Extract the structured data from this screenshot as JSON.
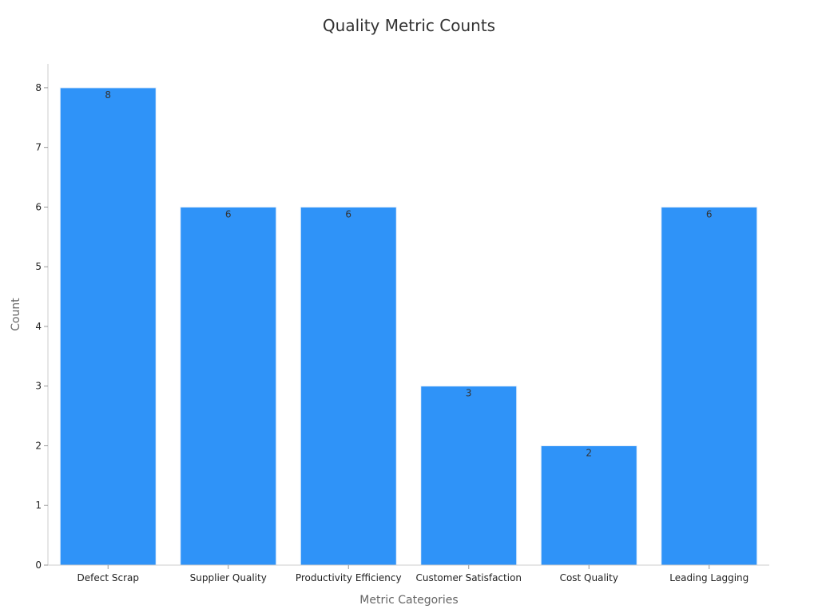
{
  "chart_data": {
    "type": "bar",
    "title": "Quality Metric Counts",
    "xlabel": "Metric Categories",
    "ylabel": "Count",
    "categories": [
      "Defect Scrap",
      "Supplier Quality",
      "Productivity Efficiency",
      "Customer Satisfaction",
      "Cost Quality",
      "Leading Lagging"
    ],
    "values": [
      8,
      6,
      6,
      3,
      2,
      6
    ],
    "ylim": [
      0,
      8.4
    ],
    "yticks": [
      0,
      1,
      2,
      3,
      4,
      5,
      6,
      7,
      8
    ],
    "grid": false,
    "legend": "none",
    "bar_color": "#2f93f8",
    "bar_edge_color": "#e8f1fb"
  }
}
